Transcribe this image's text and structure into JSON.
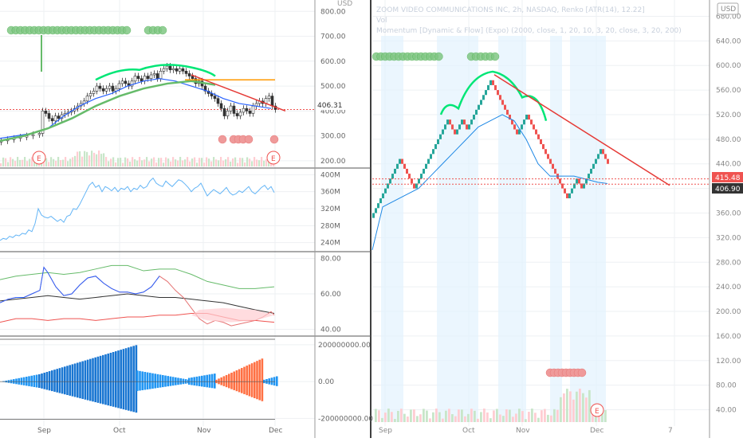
{
  "colors": {
    "up": "#26a69a",
    "down": "#ef5350",
    "bullish_signal": "#4caf50",
    "accent_line": "#e53935",
    "ma_blue": "#2962ff",
    "divider": "#000000"
  },
  "left_panel": {
    "price_pane": {
      "currency": "USD",
      "y_ticks": [
        "800.00",
        "700.00",
        "600.00",
        "500.00",
        "400.00",
        "300.00",
        "200.00"
      ],
      "last_price": "406.31",
      "earnings_markers": [
        "E",
        "E"
      ]
    },
    "volume_pane": {
      "y_ticks": [
        "400M",
        "360M",
        "320M",
        "280M",
        "240M"
      ]
    },
    "oscillator_pane": {
      "y_ticks": [
        "80.00",
        "60.00",
        "40.00"
      ]
    },
    "histogram_pane": {
      "y_ticks": [
        "200000000.00",
        "0.00",
        "-200000000.00"
      ]
    },
    "x_ticks": [
      "Sep",
      "Oct",
      "Nov",
      "Dec"
    ]
  },
  "right_panel": {
    "legend": {
      "title": "ZOOM VIDEO COMMUNICATIONS INC, 2h, NASDAQ, Renko [ATR(14), 12.22]",
      "vol": "Vol",
      "momentum": "Momentum [Dynamic & Flow] (Expo) (2000, close, 1, 20, 10, 3, 20, close, 3, 20, 200)"
    },
    "currency": "USD",
    "y_ticks": [
      "680.00",
      "640.00",
      "600.00",
      "560.00",
      "520.00",
      "480.00",
      "440.00",
      "400.00",
      "360.00",
      "320.00",
      "280.00",
      "240.00",
      "200.00",
      "160.00",
      "120.00",
      "80.00",
      "40.00"
    ],
    "price_label_red": "415.48",
    "price_label_dark": "406.90",
    "x_ticks": [
      "Sep",
      "Oct",
      "Nov",
      "Dec",
      "7"
    ],
    "earnings_marker": "E"
  },
  "chart_data": [
    {
      "type": "line",
      "pane": "left-volume",
      "ylim": [
        230,
        410
      ],
      "x": [
        0,
        4,
        8,
        12,
        16,
        20,
        24,
        28,
        32,
        36,
        40,
        44,
        48,
        52,
        56,
        60,
        64,
        68,
        72,
        76,
        80,
        84,
        88,
        92,
        96,
        100,
        104,
        108,
        112,
        116,
        120,
        124,
        128,
        132,
        136,
        140,
        144,
        148,
        152,
        156,
        160,
        164,
        168,
        172,
        176,
        180,
        184,
        188,
        192,
        196,
        200,
        204,
        208,
        212,
        216,
        220,
        224,
        228,
        232,
        236,
        240,
        244,
        248,
        252,
        256,
        260,
        264,
        268,
        272,
        276,
        280,
        284,
        288,
        292,
        296,
        300,
        304,
        308,
        312,
        316,
        320,
        324,
        328,
        332,
        336,
        340,
        344
      ],
      "values": [
        245,
        250,
        248,
        255,
        252,
        258,
        256,
        262,
        260,
        270,
        266,
        285,
        320,
        305,
        300,
        298,
        302,
        296,
        290,
        295,
        288,
        302,
        305,
        320,
        318,
        330,
        345,
        360,
        375,
        382,
        370,
        375,
        360,
        372,
        368,
        362,
        370,
        360,
        368,
        365,
        372,
        360,
        368,
        365,
        375,
        368,
        372,
        385,
        392,
        380,
        375,
        372,
        385,
        378,
        372,
        380,
        388,
        385,
        378,
        370,
        360,
        368,
        372,
        380,
        365,
        350,
        358,
        365,
        360,
        355,
        362,
        370,
        358,
        352,
        355,
        362,
        358,
        365,
        372,
        360,
        355,
        362,
        370,
        375,
        365,
        372,
        358
      ]
    },
    {
      "type": "line",
      "pane": "left-oscillator",
      "ylim": [
        38,
        82
      ],
      "series": [
        {
          "x": [
            0,
            20,
            40,
            60,
            80,
            100,
            120,
            140,
            160,
            180,
            200,
            220,
            240,
            260,
            280,
            300,
            320,
            344
          ],
          "values": [
            68,
            70,
            71,
            72,
            71,
            72,
            74,
            76,
            76,
            73,
            74,
            74,
            71,
            67,
            65,
            63,
            63,
            64
          ]
        },
        {
          "x": [
            0,
            20,
            40,
            60,
            80,
            100,
            120,
            140,
            160,
            180,
            200,
            220,
            240,
            260,
            280,
            300,
            320,
            344
          ],
          "values": [
            56,
            57,
            58,
            59,
            58,
            57,
            58,
            59,
            60,
            59,
            58,
            58,
            57,
            56,
            55,
            53,
            51,
            49
          ]
        },
        {
          "x": [
            0,
            10,
            20,
            30,
            40,
            50,
            55,
            60,
            70,
            80,
            90,
            100,
            110,
            120,
            130,
            140,
            150,
            160,
            170,
            180,
            190,
            200,
            210,
            220,
            230,
            240,
            250,
            260,
            270,
            280,
            290,
            300,
            310,
            320,
            330,
            340,
            344
          ],
          "values": [
            55,
            57,
            58,
            58,
            60,
            62,
            75,
            72,
            64,
            59,
            60,
            65,
            69,
            70,
            66,
            63,
            61,
            61,
            60,
            61,
            64,
            70,
            67,
            62,
            58,
            52,
            46,
            43,
            45,
            44,
            42,
            43,
            44,
            45,
            47,
            50,
            48
          ]
        },
        {
          "x": [
            0,
            20,
            40,
            60,
            80,
            100,
            120,
            140,
            160,
            180,
            200,
            220,
            240,
            260,
            280,
            300,
            320,
            344
          ],
          "values": [
            44,
            46,
            46,
            45,
            46,
            46,
            45,
            46,
            47,
            47,
            48,
            48,
            49,
            49,
            47,
            45,
            45,
            44
          ]
        }
      ]
    },
    {
      "type": "bar",
      "pane": "left-histogram",
      "ylim": [
        -220000000,
        230000000
      ],
      "bars": [
        {
          "x0": 0,
          "x1": 48,
          "start": 0,
          "end": 40000000,
          "color": "#2196f3"
        },
        {
          "x0": 48,
          "x1": 171,
          "start": 40000000,
          "end": 200000000,
          "color": "#1976d2"
        },
        {
          "x0": 171,
          "x1": 236,
          "start": 60000000,
          "end": 10000000,
          "color": "#2196f3"
        },
        {
          "x0": 236,
          "x1": 270,
          "start": 20000000,
          "end": 45000000,
          "color": "#2196f3"
        },
        {
          "x0": 270,
          "x1": 330,
          "start": 10000000,
          "end": 130000000,
          "color": "#ff7043"
        },
        {
          "x0": 330,
          "x1": 347,
          "start": 10000000,
          "end": 30000000,
          "color": "#2196f3"
        }
      ]
    },
    {
      "type": "line",
      "pane": "left-price",
      "ylim": [
        190,
        820
      ],
      "series": [
        {
          "name": "",
          "x": [
            0,
            20,
            40,
            60,
            80,
            100,
            120,
            140,
            160,
            180,
            200,
            220,
            240,
            260,
            280,
            300,
            320,
            340
          ],
          "values": [
            290,
            300,
            310,
            330,
            380,
            420,
            450,
            470,
            500,
            520,
            530,
            520,
            500,
            480,
            450,
            430,
            420,
            410
          ]
        },
        {
          "name": "",
          "x": [
            0,
            30,
            60,
            90,
            120,
            150,
            180,
            210,
            240,
            270
          ],
          "values": [
            280,
            300,
            330,
            370,
            420,
            460,
            490,
            510,
            520,
            505
          ]
        }
      ]
    },
    {
      "type": "line",
      "pane": "right-ma",
      "ylim": [
        20,
        700
      ],
      "x": [
        467,
        480,
        495,
        510,
        525,
        540,
        555,
        570,
        585,
        600,
        615,
        630,
        645,
        660,
        675,
        690,
        705,
        720,
        735,
        750,
        762
      ],
      "values": [
        300,
        370,
        380,
        390,
        400,
        420,
        440,
        460,
        480,
        500,
        510,
        520,
        510,
        480,
        440,
        420,
        420,
        420,
        415,
        410,
        408
      ]
    }
  ]
}
